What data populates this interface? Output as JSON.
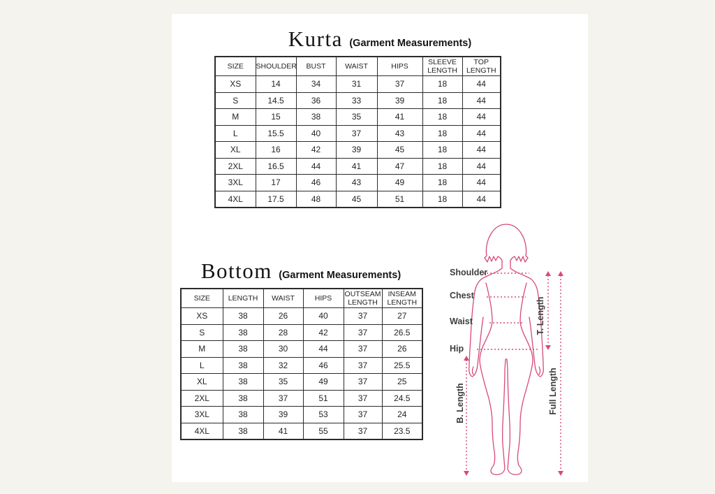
{
  "colors": {
    "background": "#f5f3ee",
    "card": "#ffffff",
    "table_border": "#2b2b2b",
    "figure_outline": "#d6497b",
    "label_text": "#3d3d3d"
  },
  "kurta_section": {
    "title": "Kurta",
    "subtitle": "(Garment Measurements)",
    "table": {
      "headers": [
        "SIZE",
        "SHOULDER",
        "BUST",
        "WAIST",
        "HIPS",
        "SLEEVE LENGTH",
        "TOP LENGTH"
      ],
      "rows": [
        [
          "XS",
          "14",
          "34",
          "31",
          "37",
          "18",
          "44"
        ],
        [
          "S",
          "14.5",
          "36",
          "33",
          "39",
          "18",
          "44"
        ],
        [
          "M",
          "15",
          "38",
          "35",
          "41",
          "18",
          "44"
        ],
        [
          "L",
          "15.5",
          "40",
          "37",
          "43",
          "18",
          "44"
        ],
        [
          "XL",
          "16",
          "42",
          "39",
          "45",
          "18",
          "44"
        ],
        [
          "2XL",
          "16.5",
          "44",
          "41",
          "47",
          "18",
          "44"
        ],
        [
          "3XL",
          "17",
          "46",
          "43",
          "49",
          "18",
          "44"
        ],
        [
          "4XL",
          "17.5",
          "48",
          "45",
          "51",
          "18",
          "44"
        ]
      ]
    }
  },
  "bottom_section": {
    "title": "Bottom",
    "subtitle": "(Garment Measurements)",
    "table": {
      "headers": [
        "SIZE",
        "LENGTH",
        "WAIST",
        "HIPS",
        "OUTSEAM LENGTH",
        "INSEAM LENGTH"
      ],
      "rows": [
        [
          "XS",
          "38",
          "26",
          "40",
          "37",
          "27"
        ],
        [
          "S",
          "38",
          "28",
          "42",
          "37",
          "26.5"
        ],
        [
          "M",
          "38",
          "30",
          "44",
          "37",
          "26"
        ],
        [
          "L",
          "38",
          "32",
          "46",
          "37",
          "25.5"
        ],
        [
          "XL",
          "38",
          "35",
          "49",
          "37",
          "25"
        ],
        [
          "2XL",
          "38",
          "37",
          "51",
          "37",
          "24.5"
        ],
        [
          "3XL",
          "38",
          "39",
          "53",
          "37",
          "24"
        ],
        [
          "4XL",
          "38",
          "41",
          "55",
          "37",
          "23.5"
        ]
      ]
    }
  },
  "figure": {
    "labels": {
      "shoulder": "Shoulder",
      "chest": "Chest",
      "waist": "Waist",
      "hip": "Hip",
      "t_length": "T. Length",
      "full_length": "Full Length",
      "b_length": "B. Length"
    }
  }
}
